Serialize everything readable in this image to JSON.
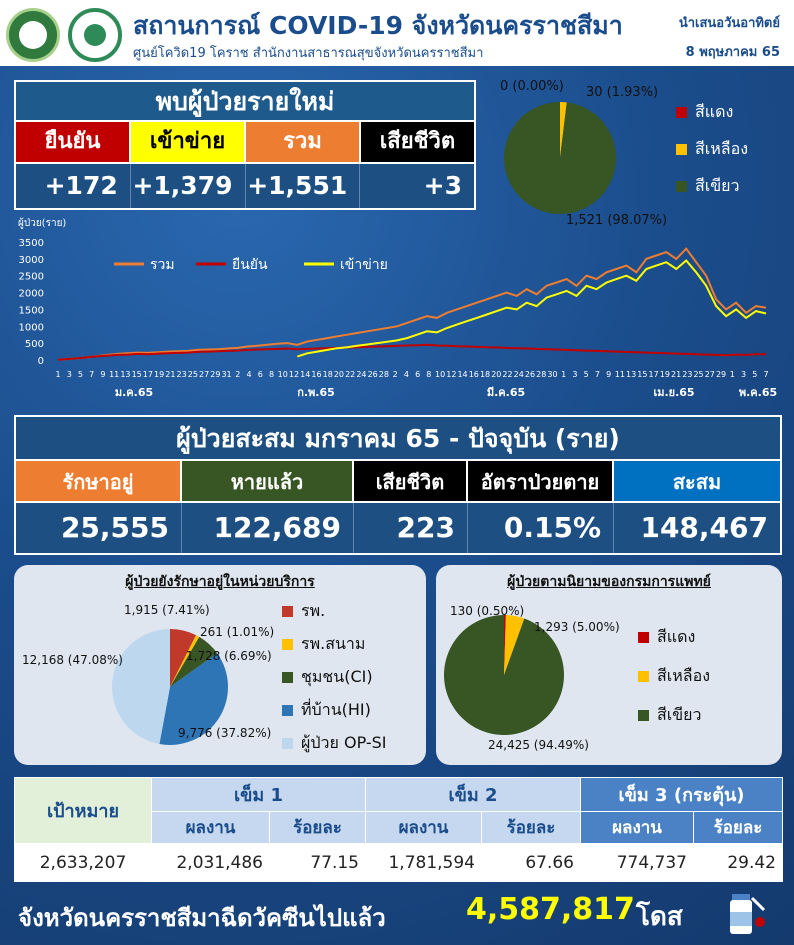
{
  "header": {
    "title": "สถานการณ์ COVID-19 จังหวัดนครราชสีมา",
    "subtitle": "ศูนย์โควิด19 โคราช สำนักงานสาธารณสุขจังหวัดนครราชสีมา",
    "presented": "นำเสนอวันอาทิตย์",
    "date": "8 พฤษภาคม 65"
  },
  "new_cases": {
    "heading": "พบผู้ป่วยรายใหม่",
    "labels": [
      "ยืนยัน",
      "เข้าข่าย",
      "รวม",
      "เสียชีวิต"
    ],
    "values": [
      "+172",
      "+1,379",
      "+1,551",
      "+3"
    ],
    "colors": [
      "#c00000",
      "#ffff00",
      "#ed7d31",
      "#000000"
    ],
    "label_text_colors": [
      "#ffffff",
      "#000000",
      "#ffffff",
      "#ffffff"
    ]
  },
  "top_pie": {
    "labels": [
      "0 (0.00%)",
      "30 (1.93%)",
      "1,521 (98.07%)"
    ],
    "legend": [
      "สีแดง",
      "สีเหลือง",
      "สีเขียว"
    ],
    "colors": [
      "#c00000",
      "#ffc000",
      "#375623"
    ],
    "values": [
      0,
      30,
      1521
    ]
  },
  "chart_data": {
    "type": "line",
    "ylabel": "ผู้ป่วย(ราย)",
    "ylim": [
      0,
      3500
    ],
    "yticks": [
      "0",
      "500",
      "1000",
      "1500",
      "2000",
      "2500",
      "3000",
      "3500"
    ],
    "x_tick_labels": [
      "1",
      "3",
      "5",
      "7",
      "9",
      "11",
      "13",
      "15",
      "17",
      "19",
      "21",
      "23",
      "25",
      "27",
      "29",
      "31",
      "2",
      "4",
      "6",
      "8",
      "10",
      "12",
      "14",
      "16",
      "18",
      "20",
      "22",
      "24",
      "26",
      "28",
      "2",
      "4",
      "6",
      "8",
      "10",
      "12",
      "14",
      "16",
      "18",
      "20",
      "22",
      "24",
      "26",
      "28",
      "30",
      "1",
      "3",
      "5",
      "7",
      "9",
      "11",
      "13",
      "15",
      "17",
      "19",
      "21",
      "23",
      "25",
      "27",
      "29",
      "1",
      "3",
      "5",
      "7"
    ],
    "month_labels": [
      "ม.ค.65",
      "ก.พ.65",
      "มี.ค.65",
      "เม.ย.65",
      "พ.ค.65"
    ],
    "series": [
      {
        "name": "รวม",
        "color": "#ed7d31",
        "values": [
          10,
          30,
          50,
          80,
          120,
          150,
          180,
          200,
          220,
          210,
          230,
          250,
          260,
          270,
          300,
          310,
          320,
          340,
          360,
          400,
          420,
          450,
          480,
          500,
          450,
          550,
          600,
          650,
          700,
          750,
          800,
          850,
          900,
          950,
          1000,
          1100,
          1200,
          1300,
          1250,
          1400,
          1500,
          1600,
          1700,
          1800,
          1900,
          2000,
          1900,
          2100,
          1950,
          2200,
          2300,
          2400,
          2200,
          2500,
          2400,
          2600,
          2700,
          2800,
          2600,
          3000,
          3100,
          3200,
          3000,
          3300,
          2900,
          2500,
          1800,
          1500,
          1700,
          1400,
          1600,
          1551
        ]
      },
      {
        "name": "ยืนยัน",
        "color": "#c00000",
        "values": [
          10,
          30,
          50,
          80,
          110,
          130,
          150,
          160,
          180,
          170,
          190,
          200,
          210,
          220,
          240,
          250,
          260,
          270,
          280,
          300,
          310,
          320,
          330,
          340,
          320,
          330,
          340,
          350,
          360,
          370,
          380,
          390,
          400,
          410,
          420,
          430,
          440,
          450,
          430,
          420,
          410,
          400,
          390,
          380,
          370,
          360,
          350,
          340,
          330,
          320,
          310,
          300,
          290,
          280,
          270,
          260,
          250,
          240,
          230,
          220,
          210,
          200,
          190,
          180,
          170,
          160,
          150,
          140,
          160,
          150,
          170,
          172
        ]
      },
      {
        "name": "เข้าข่าย",
        "color": "#ffff00",
        "values": [
          null,
          null,
          null,
          null,
          null,
          null,
          null,
          null,
          null,
          null,
          null,
          null,
          null,
          null,
          null,
          null,
          null,
          null,
          null,
          null,
          null,
          null,
          null,
          null,
          100,
          200,
          250,
          300,
          350,
          380,
          420,
          460,
          500,
          540,
          580,
          650,
          750,
          850,
          820,
          950,
          1050,
          1150,
          1250,
          1350,
          1450,
          1550,
          1500,
          1700,
          1600,
          1850,
          1950,
          2050,
          1900,
          2200,
          2100,
          2300,
          2400,
          2500,
          2350,
          2700,
          2800,
          2900,
          2700,
          2950,
          2600,
          2200,
          1600,
          1300,
          1500,
          1250,
          1450,
          1379
        ]
      }
    ]
  },
  "cumulative": {
    "heading": "ผู้ป่วยสะสม มกราคม 65 - ปัจจุบัน (ราย)",
    "labels": [
      "รักษาอยู่",
      "หายแล้ว",
      "เสียชีวิต",
      "อัตราป่วยตาย",
      "สะสม"
    ],
    "values": [
      "25,555",
      "122,689",
      "223",
      "0.15%",
      "148,467"
    ],
    "colors": [
      "#ed7d31",
      "#375623",
      "#000000",
      "#000000",
      "#0070c0"
    ]
  },
  "service_pie": {
    "title": "ผู้ป่วยยังรักษาอยู่ในหน่วยบริการ",
    "labels": [
      "1,915 (7.41%)",
      "261 (1.01%)",
      "1,728 (6.69%)",
      "9,776 (37.82%)",
      "12,168 (47.08%)"
    ],
    "values": [
      1915,
      261,
      1728,
      9776,
      12168
    ],
    "colors": [
      "#c0392b",
      "#ffc000",
      "#375623",
      "#2e75b6",
      "#bdd7ee"
    ],
    "legend": [
      "รพ.",
      "รพ.สนาม",
      "ชุมชน(CI)",
      "ที่บ้าน(HI)",
      "ผู้ป่วย OP-SI"
    ]
  },
  "dms_pie": {
    "title": "ผู้ป่วยตามนิยามของกรมการแพทย์",
    "labels": [
      "130 (0.50%)",
      "1,293 (5.00%)",
      "24,425 (94.49%)"
    ],
    "values": [
      130,
      1293,
      24425
    ],
    "colors": [
      "#c00000",
      "#ffc000",
      "#375623"
    ],
    "legend": [
      "สีแดง",
      "สีเหลือง",
      "สีเขียว"
    ]
  },
  "vaccine": {
    "target_label": "เป้าหมาย",
    "dose1": "เข็ม 1",
    "dose2": "เข็ม 2",
    "dose3": "เข็ม 3 (กระตุ้น)",
    "result": "ผลงาน",
    "percent": "ร้อยละ",
    "target": "2,633,207",
    "d1_result": "2,031,486",
    "d1_pct": "77.15",
    "d2_result": "1,781,594",
    "d2_pct": "67.66",
    "d3_result": "774,737",
    "d3_pct": "29.42"
  },
  "footer": {
    "text": "จังหวัดนครราชสีมาฉีดวัคซีนไปแล้ว",
    "total": "4,587,817",
    "unit": "โดส"
  }
}
